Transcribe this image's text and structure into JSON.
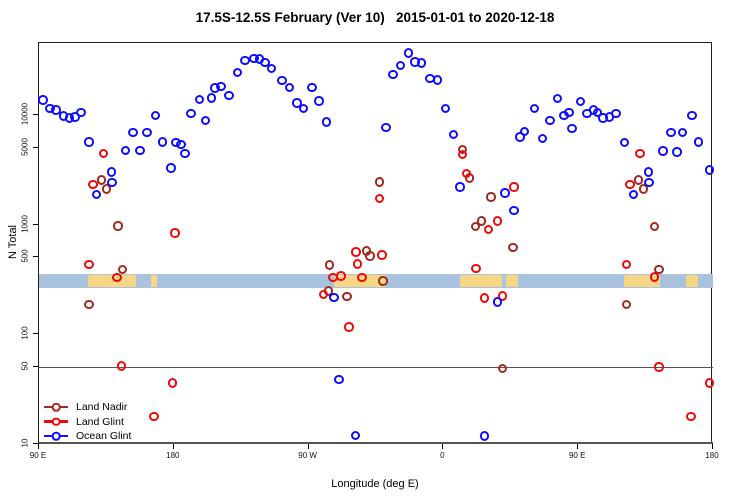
{
  "chart_data": {
    "type": "scatter",
    "title": "17.5S-12.5S February (Ver 10)   2015-01-01 to 2020-12-18",
    "xlabel": "Longitude (deg E)",
    "ylabel": "N Total",
    "x_axis": {
      "min": 90,
      "max": 540,
      "ticks": [
        {
          "lon": 90,
          "label": "90 E"
        },
        {
          "lon": 180,
          "label": "180"
        },
        {
          "lon": 270,
          "label": "90 W"
        },
        {
          "lon": 360,
          "label": "0"
        },
        {
          "lon": 450,
          "label": "90 E"
        },
        {
          "lon": 540,
          "label": "180"
        }
      ]
    },
    "y_axis": {
      "scale": "log",
      "min": 9.7,
      "max": 45400,
      "ticks": [
        10000,
        5000,
        1000,
        500,
        100,
        50,
        10
      ]
    },
    "reference_line": {
      "value": 50,
      "color": "#555555"
    },
    "ocean_band": {
      "n_min": 265,
      "n_max": 350,
      "ocean_color": "#A9C2DE",
      "land_color": "#F7D685",
      "land_segments_lon": [
        [
          122.7,
          154.7
        ],
        [
          164.7,
          168.7
        ],
        [
          286.8,
          321.5
        ],
        [
          370.9,
          398.9
        ],
        [
          401.6,
          409.6
        ],
        [
          480.3,
          504.3
        ],
        [
          521.7,
          529.7
        ]
      ]
    },
    "legend": {
      "position": "bottom-left"
    },
    "series": [
      {
        "name": "Land Nadir",
        "color": "#A02A20",
        "points": [
          [
            132.3,
            2500
          ],
          [
            135.6,
            2080
          ],
          [
            143.4,
            950
          ],
          [
            146.1,
            384
          ],
          [
            123.8,
            182
          ],
          [
            309.0,
            562
          ],
          [
            311.6,
            505
          ],
          [
            284.5,
            418
          ],
          [
            320.1,
            300
          ],
          [
            283.8,
            243
          ],
          [
            296.1,
            217
          ],
          [
            317.9,
            2410
          ],
          [
            373.1,
            4760
          ],
          [
            377.8,
            2610
          ],
          [
            392.3,
            1760
          ],
          [
            385.8,
            1060
          ],
          [
            381.8,
            948
          ],
          [
            407.1,
            607
          ],
          [
            399.8,
            47.6
          ],
          [
            490.8,
            2500
          ],
          [
            494.1,
            2080
          ],
          [
            501.3,
            948
          ],
          [
            504.6,
            384
          ],
          [
            482.6,
            182
          ]
        ]
      },
      {
        "name": "Land Glint",
        "color": "#EE0A0A",
        "points": [
          [
            133.6,
            4350
          ],
          [
            126.7,
            2280
          ],
          [
            123.8,
            425
          ],
          [
            142.7,
            323
          ],
          [
            145.6,
            50
          ],
          [
            179.7,
            35
          ],
          [
            167.2,
            17.4
          ],
          [
            181.3,
            824
          ],
          [
            302.3,
            553
          ],
          [
            319.5,
            516
          ],
          [
            303.2,
            427
          ],
          [
            286.8,
            323
          ],
          [
            292.1,
            332
          ],
          [
            306.1,
            323
          ],
          [
            280.5,
            227
          ],
          [
            297.4,
            114
          ],
          [
            317.9,
            1700
          ],
          [
            373.1,
            4310
          ],
          [
            376.0,
            2870
          ],
          [
            407.8,
            2170
          ],
          [
            396.7,
            1060
          ],
          [
            390.7,
            887
          ],
          [
            382.2,
            389
          ],
          [
            387.8,
            210
          ],
          [
            400.0,
            218
          ],
          [
            482.6,
            423
          ],
          [
            491.9,
            4350
          ],
          [
            485.2,
            2280
          ],
          [
            501.3,
            327
          ],
          [
            504.6,
            49
          ],
          [
            538.2,
            35
          ],
          [
            525.8,
            17.3
          ]
        ]
      },
      {
        "name": "Ocean Glint",
        "color": "#0F0FFF",
        "points": [
          [
            93.1,
            13500
          ],
          [
            98.0,
            11300
          ],
          [
            101.8,
            10900
          ],
          [
            106.9,
            9650
          ],
          [
            110.9,
            9260
          ],
          [
            114.7,
            9460
          ],
          [
            118.5,
            10360
          ],
          [
            123.8,
            5590
          ],
          [
            138.9,
            2970
          ],
          [
            139.4,
            2380
          ],
          [
            128.9,
            1850
          ],
          [
            148.3,
            4690
          ],
          [
            153.2,
            6800
          ],
          [
            158.1,
            4690
          ],
          [
            162.6,
            6800
          ],
          [
            168.3,
            9790
          ],
          [
            172.8,
            5590
          ],
          [
            178.6,
            3230
          ],
          [
            182.1,
            5520
          ],
          [
            185.3,
            5290
          ],
          [
            187.9,
            4350
          ],
          [
            191.9,
            10160
          ],
          [
            197.7,
            13700
          ],
          [
            201.7,
            8730
          ],
          [
            205.7,
            14100
          ],
          [
            208.0,
            17400
          ],
          [
            212.0,
            17800
          ],
          [
            217.3,
            14900
          ],
          [
            222.9,
            24000
          ],
          [
            228.0,
            31100
          ],
          [
            234.2,
            32300
          ],
          [
            237.7,
            31800
          ],
          [
            241.4,
            29700
          ],
          [
            245.8,
            26100
          ],
          [
            252.9,
            20400
          ],
          [
            257.8,
            17500
          ],
          [
            262.9,
            12700
          ],
          [
            267.1,
            11300
          ],
          [
            272.9,
            17500
          ],
          [
            277.4,
            13200
          ],
          [
            282.3,
            8500
          ],
          [
            287.4,
            211
          ],
          [
            290.8,
            38
          ],
          [
            301.9,
            11.7
          ],
          [
            322.3,
            7560
          ],
          [
            326.8,
            22900
          ],
          [
            331.7,
            27900
          ],
          [
            337.2,
            36100
          ],
          [
            341.7,
            30000
          ],
          [
            346.1,
            29400
          ],
          [
            351.7,
            21300
          ],
          [
            356.6,
            20600
          ],
          [
            361.9,
            11300
          ],
          [
            367.1,
            6560
          ],
          [
            371.6,
            2170
          ],
          [
            387.8,
            11.5
          ],
          [
            396.5,
            192
          ],
          [
            401.6,
            1900
          ],
          [
            407.6,
            1320
          ],
          [
            411.6,
            6200
          ],
          [
            414.5,
            6970
          ],
          [
            421.2,
            11300
          ],
          [
            426.5,
            6000
          ],
          [
            431.6,
            8800
          ],
          [
            436.7,
            13900
          ],
          [
            441.0,
            9790
          ],
          [
            444.3,
            10360
          ],
          [
            446.5,
            7400
          ],
          [
            451.9,
            13000
          ],
          [
            456.3,
            10160
          ],
          [
            460.8,
            10900
          ],
          [
            463.4,
            10360
          ],
          [
            467.0,
            9260
          ],
          [
            471.4,
            9460
          ],
          [
            475.9,
            10160
          ],
          [
            481.5,
            5520
          ],
          [
            497.5,
            2970
          ],
          [
            497.9,
            2380
          ],
          [
            487.5,
            1850
          ],
          [
            507.1,
            4620
          ],
          [
            512.4,
            6800
          ],
          [
            516.4,
            4520
          ],
          [
            520.2,
            6800
          ],
          [
            526.5,
            9790
          ],
          [
            530.9,
            5590
          ],
          [
            538.2,
            3100
          ]
        ]
      }
    ]
  }
}
